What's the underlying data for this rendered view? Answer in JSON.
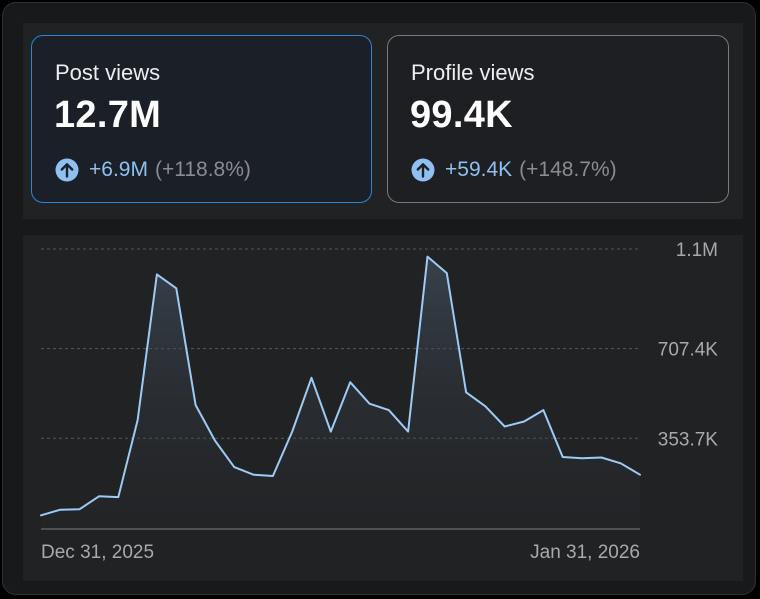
{
  "cards": [
    {
      "label": "Post views",
      "value": "12.7M",
      "delta": "+6.9M",
      "pct": "(+118.8%)",
      "icon": "arrow-up-circle-icon",
      "selected": true
    },
    {
      "label": "Profile views",
      "value": "99.4K",
      "delta": "+59.4K",
      "pct": "(+148.7%)",
      "icon": "arrow-up-circle-icon",
      "selected": false
    }
  ],
  "colors": {
    "accent": "#2a86d8",
    "delta": "#8ec0f2",
    "line": "#9dcbf5"
  },
  "chart_data": {
    "type": "area",
    "title": "",
    "xlabel": "",
    "ylabel": "",
    "x_start_label": "Dec 31, 2025",
    "x_end_label": "Jan 31, 2026",
    "x": [
      "2025-12-31",
      "2026-01-01",
      "2026-01-02",
      "2026-01-03",
      "2026-01-04",
      "2026-01-05",
      "2026-01-06",
      "2026-01-07",
      "2026-01-08",
      "2026-01-09",
      "2026-01-10",
      "2026-01-11",
      "2026-01-12",
      "2026-01-13",
      "2026-01-14",
      "2026-01-15",
      "2026-01-16",
      "2026-01-17",
      "2026-01-18",
      "2026-01-19",
      "2026-01-20",
      "2026-01-21",
      "2026-01-22",
      "2026-01-23",
      "2026-01-24",
      "2026-01-25",
      "2026-01-26",
      "2026-01-27",
      "2026-01-28",
      "2026-01-29",
      "2026-01-30",
      "2026-01-31"
    ],
    "series": [
      {
        "values": [
          50000,
          72000,
          74000,
          125000,
          122000,
          425000,
          1000000,
          945000,
          485000,
          345000,
          240000,
          210000,
          205000,
          380000,
          592000,
          380000,
          575000,
          490000,
          465000,
          380000,
          1070000,
          1005000,
          535000,
          480000,
          400000,
          420000,
          465000,
          280000,
          275000,
          278000,
          255000,
          210000
        ]
      }
    ],
    "ylim": [
      0,
      1100000
    ],
    "y_ticks": [
      {
        "value": 1100000,
        "label": "1.1M"
      },
      {
        "value": 707400,
        "label": "707.4K"
      },
      {
        "value": 353700,
        "label": "353.7K"
      }
    ],
    "grid": true,
    "legend": "none"
  }
}
